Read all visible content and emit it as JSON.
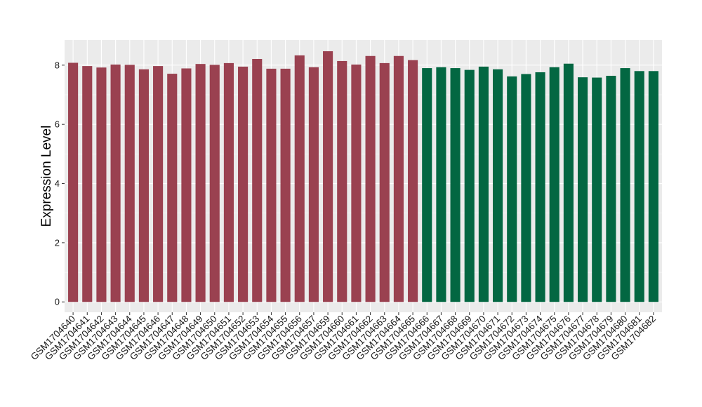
{
  "chart_data": {
    "type": "bar",
    "ylabel": "Expression Level",
    "ylim": [
      -0.35,
      8.85
    ],
    "yticks": [
      0,
      2,
      4,
      6,
      8
    ],
    "grid": true,
    "panel_color": "#ebebeb",
    "grid_color": "#ffffff",
    "categories": [
      "GSM1704640",
      "GSM1704641",
      "GSM1704642",
      "GSM1704643",
      "GSM1704644",
      "GSM1704645",
      "GSM1704646",
      "GSM1704647",
      "GSM1704648",
      "GSM1704649",
      "GSM1704650",
      "GSM1704651",
      "GSM1704652",
      "GSM1704653",
      "GSM1704654",
      "GSM1704655",
      "GSM1704656",
      "GSM1704657",
      "GSM1704659",
      "GSM1704660",
      "GSM1704661",
      "GSM1704662",
      "GSM1704663",
      "GSM1704664",
      "GSM1704665",
      "GSM1704666",
      "GSM1704667",
      "GSM1704668",
      "GSM1704669",
      "GSM1704670",
      "GSM1704671",
      "GSM1704672",
      "GSM1704673",
      "GSM1704674",
      "GSM1704675",
      "GSM1704676",
      "GSM1704677",
      "GSM1704678",
      "GSM1704679",
      "GSM1704680",
      "GSM1704681",
      "GSM1704682"
    ],
    "values": [
      8.08,
      7.97,
      7.92,
      8.02,
      8.01,
      7.86,
      7.97,
      7.71,
      7.89,
      8.04,
      8.01,
      8.07,
      7.95,
      8.21,
      7.88,
      7.88,
      8.33,
      7.93,
      8.47,
      8.14,
      8.02,
      8.31,
      8.07,
      8.31,
      8.17,
      7.9,
      7.93,
      7.9,
      7.84,
      7.95,
      7.86,
      7.62,
      7.7,
      7.76,
      7.93,
      8.05,
      7.59,
      7.58,
      7.64,
      7.9,
      7.8,
      7.8
    ],
    "bar_colors": [
      "#9a4150",
      "#9a4150",
      "#9a4150",
      "#9a4150",
      "#9a4150",
      "#9a4150",
      "#9a4150",
      "#9a4150",
      "#9a4150",
      "#9a4150",
      "#9a4150",
      "#9a4150",
      "#9a4150",
      "#9a4150",
      "#9a4150",
      "#9a4150",
      "#9a4150",
      "#9a4150",
      "#9a4150",
      "#9a4150",
      "#9a4150",
      "#9a4150",
      "#9a4150",
      "#9a4150",
      "#9a4150",
      "#036742",
      "#036742",
      "#036742",
      "#036742",
      "#036742",
      "#036742",
      "#036742",
      "#036742",
      "#036742",
      "#036742",
      "#036742",
      "#036742",
      "#036742",
      "#036742",
      "#036742",
      "#036742",
      "#036742"
    ]
  }
}
